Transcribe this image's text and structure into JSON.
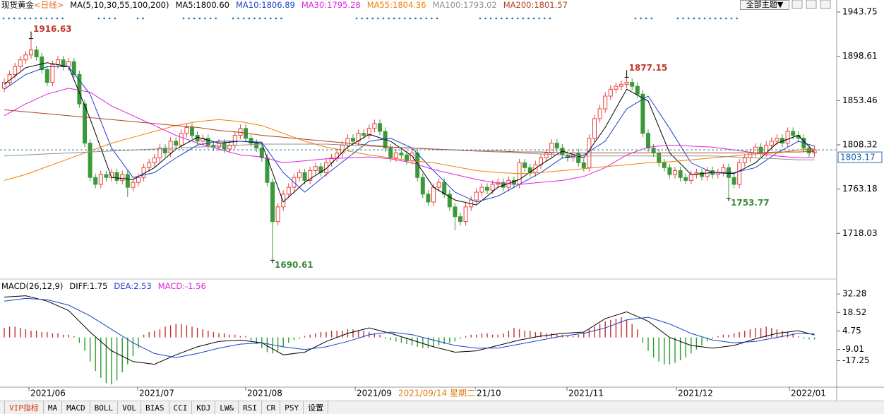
{
  "header": {
    "symbol": "现货黄金",
    "period": "<日线>",
    "indicator": "MA(5,10,30,55,100,200)",
    "theme_button": "全部主题▼"
  },
  "chart_data": [
    {
      "type": "candlestick",
      "ylim": [
        1675,
        1956
      ],
      "yticks": [
        1943.75,
        1898.61,
        1853.46,
        1808.32,
        1763.18,
        1718.03
      ],
      "last_price": 1803.17,
      "up_color": "#e8413a",
      "down_color": "#3a9a3a",
      "open": [
        1866,
        1872,
        1880,
        1888,
        1895,
        1900,
        1905,
        1898,
        1885,
        1872,
        1890,
        1895,
        1888,
        1893,
        1880,
        1850,
        1810,
        1775,
        1768,
        1778,
        1775,
        1780,
        1772,
        1778,
        1765,
        1770,
        1775,
        1785,
        1790,
        1795,
        1805,
        1800,
        1812,
        1808,
        1820,
        1826,
        1818,
        1812,
        1815,
        1808,
        1806,
        1810,
        1804,
        1808,
        1818,
        1825,
        1815,
        1810,
        1805,
        1795,
        1770,
        1730,
        1745,
        1758,
        1765,
        1775,
        1780,
        1772,
        1782,
        1786,
        1780,
        1790,
        1795,
        1800,
        1808,
        1815,
        1812,
        1820,
        1818,
        1825,
        1830,
        1822,
        1805,
        1795,
        1800,
        1798,
        1792,
        1800,
        1775,
        1758,
        1750,
        1765,
        1770,
        1758,
        1745,
        1735,
        1730,
        1745,
        1752,
        1760,
        1765,
        1762,
        1768,
        1770,
        1765,
        1772,
        1768,
        1790,
        1785,
        1780,
        1788,
        1795,
        1800,
        1810,
        1805,
        1798,
        1795,
        1800,
        1790,
        1785,
        1815,
        1835,
        1845,
        1858,
        1865,
        1868,
        1870,
        1872,
        1868,
        1860,
        1820,
        1805,
        1800,
        1790,
        1785,
        1778,
        1782,
        1775,
        1772,
        1778,
        1780,
        1776,
        1782,
        1778,
        1780,
        1785,
        1775,
        1768,
        1790,
        1795,
        1800,
        1806,
        1800,
        1808,
        1812,
        1815,
        1810,
        1822,
        1818,
        1815,
        1805,
        1800
      ],
      "high": [
        1876,
        1884,
        1892,
        1899,
        1904,
        1916.63,
        1909,
        1902,
        1889,
        1894,
        1899,
        1899,
        1897,
        1897,
        1884,
        1854,
        1814,
        1779,
        1782,
        1782,
        1784,
        1784,
        1782,
        1782,
        1774,
        1779,
        1789,
        1794,
        1799,
        1809,
        1809,
        1816,
        1816,
        1824,
        1830,
        1830,
        1822,
        1819,
        1819,
        1812,
        1814,
        1814,
        1812,
        1822,
        1829,
        1829,
        1819,
        1814,
        1809,
        1799,
        1774,
        1749,
        1762,
        1769,
        1779,
        1784,
        1784,
        1786,
        1790,
        1790,
        1794,
        1799,
        1804,
        1812,
        1819,
        1819,
        1824,
        1824,
        1829,
        1834,
        1834,
        1826,
        1809,
        1804,
        1804,
        1802,
        1804,
        1804,
        1779,
        1762,
        1769,
        1774,
        1774,
        1762,
        1749,
        1739,
        1749,
        1756,
        1764,
        1769,
        1769,
        1772,
        1774,
        1774,
        1776,
        1776,
        1794,
        1794,
        1789,
        1792,
        1799,
        1804,
        1814,
        1814,
        1809,
        1802,
        1804,
        1804,
        1794,
        1819,
        1839,
        1849,
        1862,
        1869,
        1872,
        1874,
        1877.15,
        1876,
        1872,
        1864,
        1824,
        1809,
        1804,
        1794,
        1789,
        1786,
        1786,
        1779,
        1782,
        1784,
        1784,
        1786,
        1786,
        1784,
        1789,
        1789,
        1779,
        1794,
        1799,
        1804,
        1810,
        1810,
        1812,
        1816,
        1819,
        1819,
        1826,
        1826,
        1822,
        1819,
        1809,
        1807
      ],
      "low": [
        1862,
        1868,
        1876,
        1884,
        1891,
        1896,
        1894,
        1881,
        1868,
        1868,
        1886,
        1884,
        1884,
        1876,
        1846,
        1806,
        1771,
        1764,
        1764,
        1771,
        1771,
        1768,
        1768,
        1755,
        1761,
        1766,
        1771,
        1781,
        1786,
        1791,
        1796,
        1796,
        1804,
        1804,
        1816,
        1814,
        1808,
        1808,
        1804,
        1802,
        1802,
        1800,
        1800,
        1804,
        1814,
        1811,
        1806,
        1801,
        1791,
        1766,
        1690.61,
        1726,
        1741,
        1754,
        1761,
        1771,
        1768,
        1768,
        1778,
        1776,
        1776,
        1786,
        1791,
        1796,
        1804,
        1808,
        1808,
        1814,
        1814,
        1821,
        1818,
        1801,
        1791,
        1791,
        1794,
        1788,
        1788,
        1771,
        1754,
        1746,
        1746,
        1761,
        1754,
        1741,
        1721,
        1726,
        1726,
        1741,
        1748,
        1756,
        1758,
        1758,
        1764,
        1761,
        1761,
        1764,
        1764,
        1781,
        1776,
        1776,
        1784,
        1791,
        1796,
        1801,
        1794,
        1791,
        1791,
        1786,
        1781,
        1781,
        1811,
        1831,
        1841,
        1854,
        1861,
        1864,
        1866,
        1864,
        1856,
        1816,
        1801,
        1796,
        1786,
        1781,
        1774,
        1774,
        1771,
        1768,
        1768,
        1774,
        1772,
        1772,
        1774,
        1774,
        1776,
        1753.77,
        1764,
        1764,
        1786,
        1791,
        1796,
        1796,
        1796,
        1804,
        1808,
        1806,
        1806,
        1814,
        1811,
        1801,
        1796,
        1796
      ],
      "close": [
        1872,
        1880,
        1888,
        1895,
        1900,
        1905,
        1898,
        1885,
        1872,
        1890,
        1895,
        1888,
        1893,
        1880,
        1850,
        1810,
        1775,
        1768,
        1778,
        1775,
        1780,
        1772,
        1778,
        1765,
        1770,
        1775,
        1785,
        1790,
        1795,
        1805,
        1800,
        1812,
        1808,
        1820,
        1826,
        1818,
        1812,
        1815,
        1808,
        1806,
        1810,
        1804,
        1808,
        1818,
        1825,
        1815,
        1810,
        1805,
        1795,
        1770,
        1730,
        1745,
        1758,
        1765,
        1775,
        1780,
        1772,
        1782,
        1786,
        1780,
        1790,
        1795,
        1800,
        1808,
        1815,
        1812,
        1820,
        1818,
        1825,
        1830,
        1822,
        1805,
        1795,
        1800,
        1798,
        1792,
        1800,
        1775,
        1758,
        1750,
        1765,
        1770,
        1758,
        1745,
        1735,
        1730,
        1745,
        1752,
        1760,
        1765,
        1762,
        1768,
        1770,
        1765,
        1772,
        1768,
        1790,
        1785,
        1780,
        1788,
        1795,
        1800,
        1810,
        1805,
        1798,
        1795,
        1800,
        1790,
        1785,
        1815,
        1835,
        1845,
        1858,
        1865,
        1868,
        1870,
        1872,
        1868,
        1860,
        1820,
        1805,
        1800,
        1790,
        1785,
        1778,
        1782,
        1775,
        1772,
        1778,
        1780,
        1776,
        1782,
        1778,
        1780,
        1785,
        1775,
        1768,
        1790,
        1795,
        1800,
        1806,
        1800,
        1808,
        1812,
        1815,
        1810,
        1822,
        1818,
        1815,
        1805,
        1800,
        1803.17
      ],
      "ma_x": [
        0,
        4,
        8,
        12,
        16,
        20,
        24,
        28,
        32,
        36,
        40,
        44,
        48,
        52,
        56,
        60,
        64,
        68,
        72,
        76,
        80,
        84,
        88,
        92,
        96,
        100,
        104,
        108,
        112,
        116,
        120,
        124,
        128,
        132,
        136,
        140,
        144,
        148,
        151
      ],
      "series": [
        {
          "legend_label": "MA5:1800.60",
          "color": "#000000",
          "values": [
            1870,
            1887,
            1892,
            1888,
            1835,
            1775,
            1773,
            1785,
            1804,
            1816,
            1810,
            1812,
            1810,
            1750,
            1770,
            1784,
            1806,
            1819,
            1812,
            1797,
            1765,
            1752,
            1747,
            1765,
            1773,
            1788,
            1802,
            1795,
            1826,
            1865,
            1853,
            1800,
            1778,
            1780,
            1779,
            1790,
            1810,
            1818,
            1800.6
          ]
        },
        {
          "legend_label": "MA10:1806.89",
          "color": "#1b3fd0",
          "values": [
            1865,
            1880,
            1888,
            1888,
            1860,
            1805,
            1775,
            1780,
            1795,
            1808,
            1812,
            1812,
            1811,
            1780,
            1760,
            1778,
            1795,
            1812,
            1815,
            1805,
            1782,
            1760,
            1750,
            1756,
            1768,
            1780,
            1795,
            1798,
            1812,
            1845,
            1858,
            1825,
            1790,
            1780,
            1780,
            1785,
            1800,
            1812,
            1806.89
          ]
        },
        {
          "legend_label": "MA30:1795.28",
          "color": "#e020e0",
          "values": [
            1838,
            1850,
            1860,
            1866,
            1862,
            1848,
            1838,
            1828,
            1818,
            1810,
            1804,
            1798,
            1796,
            1790,
            1792,
            1794,
            1795,
            1796,
            1794,
            1790,
            1783,
            1778,
            1773,
            1769,
            1768,
            1770,
            1772,
            1776,
            1785,
            1798,
            1806,
            1808,
            1807,
            1806,
            1803,
            1800,
            1797,
            1795,
            1795.28
          ]
        },
        {
          "legend_label": "MA55:1804.36",
          "color": "#f08000",
          "values": [
            1772,
            1778,
            1786,
            1794,
            1802,
            1810,
            1816,
            1822,
            1828,
            1832,
            1834,
            1832,
            1828,
            1820,
            1812,
            1806,
            1802,
            1798,
            1795,
            1792,
            1790,
            1786,
            1782,
            1780,
            1779,
            1780,
            1782,
            1784,
            1786,
            1788,
            1790,
            1791,
            1793,
            1795,
            1797,
            1799,
            1800,
            1803,
            1804.36
          ]
        },
        {
          "legend_label": "MA100:1793.02",
          "color": "#909090",
          "values": [
            1797,
            1798,
            1799,
            1800,
            1801,
            1802,
            1803,
            1804,
            1805,
            1806,
            1807,
            1808,
            1809,
            1809,
            1809,
            1809,
            1808,
            1807,
            1806,
            1805,
            1804,
            1803,
            1802,
            1801,
            1800,
            1799,
            1798,
            1797,
            1797,
            1797,
            1797,
            1797,
            1797,
            1797,
            1796,
            1795,
            1794,
            1793,
            1793.02
          ]
        },
        {
          "legend_label": "MA200:1801.57",
          "color": "#b04020",
          "values": [
            1844,
            1842,
            1840,
            1838,
            1836,
            1834,
            1832,
            1830,
            1828,
            1826,
            1823,
            1821,
            1818,
            1816,
            1814,
            1812,
            1810,
            1808,
            1806,
            1805,
            1804,
            1803,
            1802,
            1802,
            1801,
            1801,
            1800,
            1800,
            1800,
            1800,
            1800,
            1800,
            1800,
            1800,
            1800,
            1800,
            1801,
            1801,
            1801.57
          ]
        }
      ],
      "x_labels": [
        "2021/06",
        "2021/07",
        "2021/08",
        "2021/09",
        "21/10",
        "2021/11",
        "2021/12",
        "2022/01"
      ],
      "crosshair_date": "2021/09/14 星期二"
    },
    {
      "type": "macd",
      "title": "MACD(26,12,9)",
      "ylim": [
        -37,
        35.5
      ],
      "yticks": [
        32.28,
        18.52,
        4.75,
        -9.01,
        -17.25
      ],
      "up_color": "#c03030",
      "down_color": "#2e9a2e",
      "ma_x": [
        0,
        4,
        8,
        12,
        16,
        20,
        24,
        28,
        32,
        36,
        40,
        44,
        48,
        52,
        56,
        60,
        64,
        68,
        72,
        76,
        80,
        84,
        88,
        92,
        96,
        100,
        104,
        108,
        112,
        116,
        120,
        124,
        128,
        132,
        136,
        140,
        144,
        148,
        151
      ],
      "series": [
        {
          "legend_label": "DIFF:1.75",
          "color": "#000000",
          "values": [
            30,
            31,
            27,
            20,
            4,
            -10,
            -18,
            -20,
            -13,
            -7,
            -3,
            -2,
            -4,
            -13,
            -11,
            -3,
            3,
            7,
            3,
            -2,
            -7,
            -11,
            -10,
            -6,
            -2,
            1,
            3,
            4,
            14,
            19,
            12,
            0,
            -6,
            -8,
            -6,
            -1,
            3,
            5,
            1.75
          ]
        },
        {
          "legend_label": "DEA:2.53",
          "color": "#1b3fd0",
          "values": [
            27,
            29,
            28,
            24,
            16,
            6,
            -4,
            -12,
            -15,
            -12,
            -8,
            -5,
            -4,
            -7,
            -9,
            -7,
            -3,
            2,
            4,
            2,
            -2,
            -6,
            -8,
            -8,
            -5,
            -2,
            1,
            3,
            7,
            13,
            15,
            10,
            3,
            -2,
            -4,
            -3,
            0,
            3,
            2.53
          ]
        }
      ],
      "histogram": {
        "legend_label": "MACD:-1.56",
        "color": "#e020e0",
        "values": [
          7,
          8,
          8,
          7,
          6,
          5,
          5,
          4,
          4,
          3,
          3,
          2,
          2,
          1,
          -4,
          -10,
          -18,
          -25,
          -30,
          -34,
          -35,
          -32,
          -26,
          -20,
          -14,
          -8,
          2,
          4,
          5,
          6,
          8,
          9,
          10,
          10,
          9,
          8,
          7,
          6,
          5,
          4,
          3,
          3,
          2,
          2,
          1,
          1,
          -2,
          -5,
          -8,
          -11,
          -12,
          -10,
          -7,
          -4,
          -2,
          -1,
          1,
          2,
          3,
          4,
          4,
          5,
          5,
          5,
          6,
          6,
          5,
          5,
          4,
          3,
          2,
          -1,
          -2,
          -3,
          -4,
          -5,
          -6,
          -7,
          -8,
          -8,
          -7,
          -6,
          -5,
          -4,
          -3,
          -1,
          1,
          2,
          2,
          3,
          3,
          2,
          2,
          3,
          5,
          7,
          6,
          5,
          5,
          4,
          4,
          3,
          3,
          2,
          2,
          1,
          1,
          2,
          4,
          6,
          8,
          10,
          12,
          13,
          14,
          15,
          13,
          10,
          6,
          -4,
          -10,
          -15,
          -18,
          -20,
          -20,
          -19,
          -17,
          -15,
          -12,
          -9,
          -6,
          -3,
          -1,
          1,
          2,
          2,
          3,
          4,
          5,
          6,
          7,
          7,
          8,
          7,
          6,
          5,
          4,
          3,
          1,
          -1,
          -1.5,
          -1.56
        ]
      }
    }
  ],
  "tabs": [
    "VIP指标",
    "MA",
    "MACD",
    "BOLL",
    "VOL",
    "BIAS",
    "CCI",
    "KDJ",
    "LW&",
    "RSI",
    "CR",
    "PSY",
    "设置"
  ]
}
